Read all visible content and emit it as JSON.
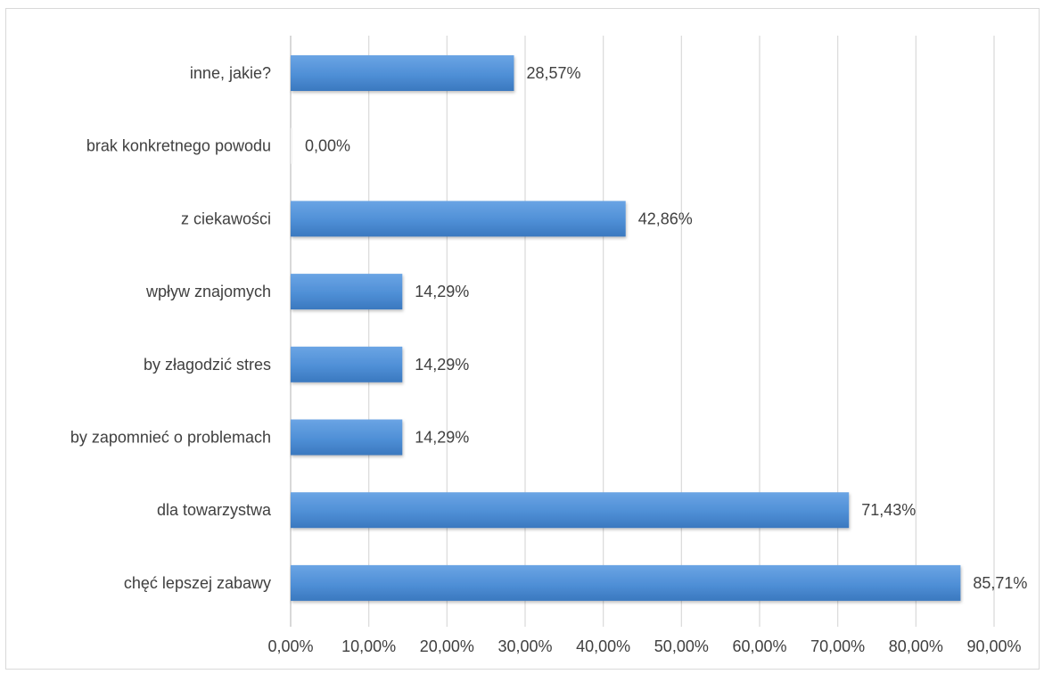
{
  "chart_data": {
    "type": "bar",
    "orientation": "horizontal",
    "categories": [
      "inne, jakie?",
      "brak konkretnego powodu",
      "z ciekawości",
      "wpływ znajomych",
      "by złagodzić stres",
      "by zapomnieć o problemach",
      "dla towarzystwa",
      "chęć lepszej zabawy"
    ],
    "values": [
      28.57,
      0.0,
      42.86,
      14.29,
      14.29,
      14.29,
      71.43,
      85.71
    ],
    "data_labels": [
      "28,57%",
      "0,00%",
      "42,86%",
      "14,29%",
      "14,29%",
      "14,29%",
      "71,43%",
      "85,71%"
    ],
    "xlim": [
      0,
      90
    ],
    "x_ticks": [
      0,
      10,
      20,
      30,
      40,
      50,
      60,
      70,
      80,
      90
    ],
    "x_tick_labels": [
      "0,00%",
      "10,00%",
      "20,00%",
      "30,00%",
      "40,00%",
      "50,00%",
      "60,00%",
      "70,00%",
      "80,00%",
      "90,00%"
    ],
    "title": "",
    "xlabel": "",
    "ylabel": "",
    "grid": true,
    "legend": "none",
    "bar_color": "#4f8fd6",
    "bar_color_light": "#6aa4e4",
    "bar_color_dark": "#3a78bf",
    "grid_color": "#d9d9d9",
    "text_color": "#404040"
  }
}
